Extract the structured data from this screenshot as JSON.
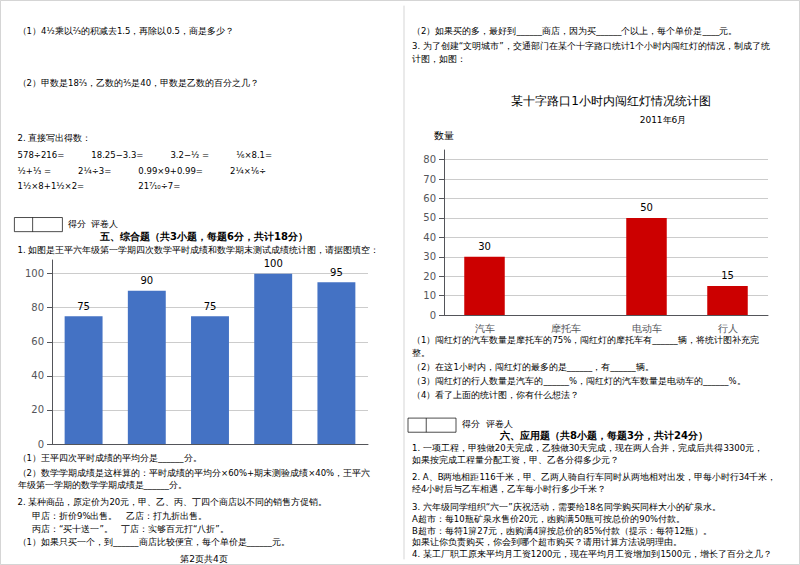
{
  "chart_data": [
    {
      "type": "bar",
      "title": "某十字路口1小时内闯红灯情况统计图",
      "subtitle": "2011年6月",
      "ylabel": "数量",
      "categories": [
        "汽车",
        "摩托车",
        "电动车",
        "行人"
      ],
      "values": [
        30,
        0,
        50,
        15
      ],
      "data_labels": true,
      "value_labels": [
        "30",
        null,
        "50",
        "15"
      ],
      "color": "#cc0000",
      "ylim": [
        0,
        85
      ],
      "yticks": [
        0,
        10,
        20,
        30,
        40,
        50,
        60,
        70,
        80
      ],
      "grid": true,
      "annotations": [
        "（2）如果买的多，最好到______商店，因为买______个以上，每个单价是____元。",
        "3. 为了创建“文明城市”，交通部门在某个十字路口统计1个小时内闯红灯的情况，制成了统",
        "计图，如图：",
        "（1）闯红灯的汽车数量是摩托车的75%，闯红灯的摩托车有______辆，将统计图补充完",
        "整。",
        "（2）在这1小时内，闯红灯的最多的是______，有______辆。",
        "（3）闯红灯的行人数量是汽车的______%，闯红灯的汽车数量是电动车的______%。",
        "（4）看了上面的统计图，你有什么想法？",
        "得分  评卷人",
        "六、应用题（共8小题，每题3分，共计24分）",
        "1. 一项工程，甲独做20天完成，乙独做30天完成，现在两人合并，完成后共得3300元，",
        "如果按完成工程量分配工资，甲、乙各分得多少元？",
        "2. A、B两地相距116千米，甲、乙两人骑自行车同时从两地相对出发，甲每小时行34千米，",
        "经4小时后与乙车相遇，乙车每小时行多少千米？",
        "3. 六年级同学组织“六一”庆祝活动，需要给18名同学购买同样大小的矿泉水。",
        "A超市：每10瓶矿泉水售价20元，凼购满50瓶可按总价的90%付款。",
        "B超市：每符1箳27元，凼购满4箳按总价的85%付款（提示：每符12瓶）。",
        "如果让你负责购买，你会到哪个超市购买？请用计算方法说明理由。",
        "4. 某工厂职工原来平均月工资1200元，现在平均月工资增加到1500元，增长了百分之几？"
      ]
    },
    {
      "type": "bar",
      "categories": [
        null,
        null,
        null,
        null,
        null
      ],
      "values": [
        75,
        90,
        75,
        100,
        95
      ],
      "data_labels": true,
      "color": "#4472c4",
      "ylim": [
        0,
        108
      ],
      "yticks": [
        0,
        20,
        40,
        60,
        80,
        100
      ],
      "grid": true,
      "annotations": [
        "（1）4½乘以⅔的积减去1.5，再除以0.5，商是多少？",
        "（2）甲数是18⅔，乙数的⅗是40，甲数是乙数的百分之几？",
        "2. 直接写出得数：",
        "578÷216=          18.25−3.3=          3.2−½ =          ⅙×8.1=",
        "½+⅓ =          2¼÷3=          0.99×9+0.99=          2¼×⅙÷",
        "1½×8+1½×2=                    21⁷⁄₁₀÷7=",
        "得分  评卷人",
        "五、综合题（共3小题，每题6分，共计18分）",
        "1. 如图是王平六年级第一学期四次数学平时成绩和数学期末测试成绩统计图，请据图填空：",
        "（1）王平四次平时成绩的平均分是______分。",
        "（2）数学学期成绩是这样算的：平时成绩的平均分×60%+期末测验成绩×40%，王平六",
        "年级第一学期的数学学期成绩是______分。",
        "2. 某种商品，原定价为20元，甲、乙、丙、丁四个商店以不同的销售方促销。",
        "甲店：折价9%出售。   乙店：打九折出售。",
        "丙店：“买十送一”。   丁店：实够百元打“八折”。",
        "（1）如果只买一个，到______商店比较便宜，每个单价是______元。",
        "第2页共4页"
      ]
    }
  ]
}
